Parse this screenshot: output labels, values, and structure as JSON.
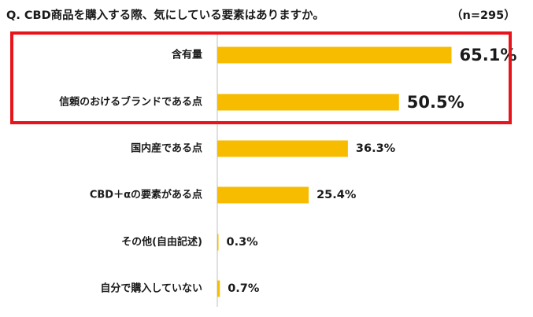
{
  "title": "Q. CBD商品を購入する際、気にしている要素はありますか。",
  "sample": "（n=295）",
  "colors": {
    "bar": "#F7BC00",
    "highlight_border": "#E8141C",
    "axis": "#bfbfbf"
  },
  "chart_data": {
    "type": "bar",
    "orientation": "horizontal",
    "categories": [
      "含有量",
      "信頼のおけるブランドである点",
      "国内産である点",
      "CBD＋αの要素がある点",
      "その他(自由記述)",
      "自分で購入していない"
    ],
    "values": [
      65.1,
      50.5,
      36.3,
      25.4,
      0.3,
      0.7
    ],
    "value_labels": [
      "65.1%",
      "50.5%",
      "36.3%",
      "25.4%",
      "0.3%",
      "0.7%"
    ],
    "unit": "%",
    "highlighted_categories": [
      "含有量",
      "信頼のおけるブランドである点"
    ],
    "xlim": [
      0,
      100
    ],
    "grid": false
  }
}
